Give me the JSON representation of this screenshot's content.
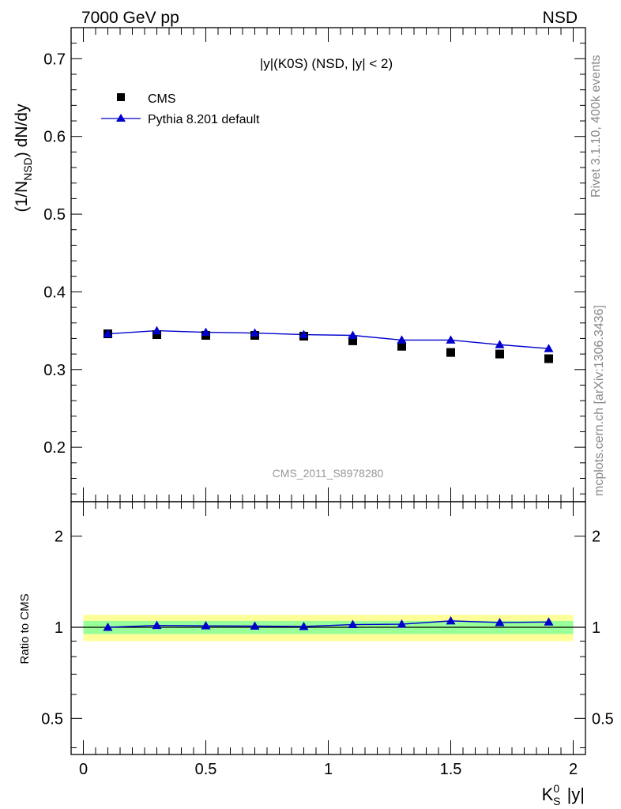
{
  "header": {
    "left": "7000 GeV pp",
    "right": "NSD"
  },
  "side_labels": {
    "rivet": "Rivet 3.1.10,  400k events",
    "mcplots": "mcplots.cern.ch [arXiv:1306.3436]"
  },
  "watermark": "CMS_2011_S8978280",
  "colors": {
    "data": "#000000",
    "mc": "#0000cc",
    "band_inner": "#99ff99",
    "band_outer": "#ffff99",
    "watermark": "#999999"
  },
  "chart_data": [
    {
      "type": "scatter",
      "panel": "main",
      "title": "|y|(K0S) (NSD, |y| < 2)",
      "ylabel": "(1/N_NSD) dN/dy",
      "ylim": [
        0.13,
        0.74
      ],
      "yticks": [
        0.2,
        0.3,
        0.4,
        0.5,
        0.6,
        0.7
      ],
      "xlim": [
        -0.05,
        2.05
      ],
      "legend_position": "top-left",
      "x": [
        0.1,
        0.3,
        0.5,
        0.7,
        0.9,
        1.1,
        1.3,
        1.5,
        1.7,
        1.9
      ],
      "series": [
        {
          "name": "CMS",
          "marker": "square",
          "values": [
            0.346,
            0.345,
            0.344,
            0.344,
            0.343,
            0.337,
            0.33,
            0.322,
            0.32,
            0.314
          ]
        },
        {
          "name": "Pythia 8.201 default",
          "marker": "triangle",
          "line": true,
          "values": [
            0.346,
            0.35,
            0.348,
            0.347,
            0.345,
            0.344,
            0.338,
            0.338,
            0.332,
            0.327
          ]
        }
      ]
    },
    {
      "type": "line",
      "panel": "ratio",
      "ylabel": "Ratio to CMS",
      "xlabel": "K_S^0 |y|",
      "yscale": "log",
      "ylim": [
        0.38,
        2.6
      ],
      "yticks": [
        0.5,
        1,
        2
      ],
      "xticks": [
        0,
        0.5,
        1,
        1.5,
        2
      ],
      "xlim": [
        -0.05,
        2.05
      ],
      "bands": {
        "inner": [
          0.95,
          1.05
        ],
        "outer": [
          0.9,
          1.1
        ],
        "xrange": [
          0.0,
          2.0
        ]
      },
      "x": [
        0.1,
        0.3,
        0.5,
        0.7,
        0.9,
        1.1,
        1.3,
        1.5,
        1.7,
        1.9
      ],
      "series": [
        {
          "name": "Pythia 8.201 default",
          "marker": "triangle",
          "values": [
            1.0,
            1.014,
            1.011,
            1.009,
            1.006,
            1.021,
            1.024,
            1.05,
            1.037,
            1.041
          ]
        }
      ]
    }
  ]
}
